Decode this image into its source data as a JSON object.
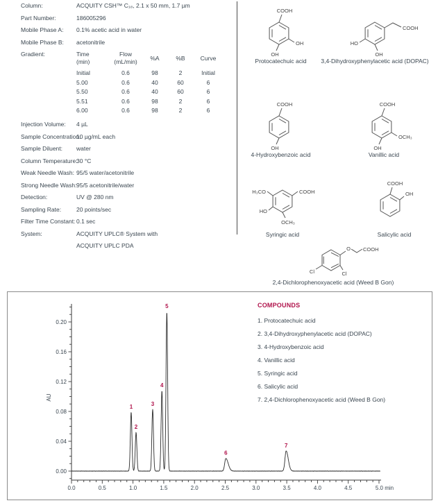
{
  "colors": {
    "accent_crimson": "#b0134b",
    "body_text": "#3a4650",
    "trace": "#2b2b2b",
    "axis": "#3a3a3a",
    "structure_stroke": "#555555"
  },
  "conditions": {
    "rows": [
      {
        "label": "Column:",
        "value": "ACQUITY CSH™ C₁₈, 2.1 x 50 mm, 1.7 µm"
      },
      {
        "label": "Part Number:",
        "value": "186005296"
      },
      {
        "label": "Mobile Phase A:",
        "value": "0.1% acetic acid in water"
      },
      {
        "label": "Mobile Phase B:",
        "value": "acetonitrile"
      }
    ],
    "gradient_label": "Gradient:",
    "gradient": {
      "col_headers": [
        {
          "line1": "Time",
          "line2": "(min)"
        },
        {
          "line1": "Flow",
          "line2": "(mL/min)"
        },
        {
          "line1": "%A",
          "line2": ""
        },
        {
          "line1": "%B",
          "line2": ""
        },
        {
          "line1": "Curve",
          "line2": ""
        }
      ],
      "rows": [
        [
          "Initial",
          "0.6",
          "98",
          "2",
          "Initial"
        ],
        [
          "5.00",
          "0.6",
          "40",
          "60",
          "6"
        ],
        [
          "5.50",
          "0.6",
          "40",
          "60",
          "6"
        ],
        [
          "5.51",
          "0.6",
          "98",
          "2",
          "6"
        ],
        [
          "6.00",
          "0.6",
          "98",
          "2",
          "6"
        ]
      ]
    },
    "rows2": [
      {
        "label": "Injection Volume:",
        "value": "4 µL"
      },
      {
        "label": "Sample Concentration:",
        "value": "10 µg/mL each"
      },
      {
        "label": "Sample Diluent:",
        "value": "water"
      },
      {
        "label": "Column Temperature:",
        "value": "30 °C"
      },
      {
        "label": "Weak Needle Wash:",
        "value": "95/5 water/acetonitrile"
      },
      {
        "label": "Strong Needle Wash:",
        "value": "95/5 acetonitrile/water"
      },
      {
        "label": "Detection:",
        "value": "UV @ 280 nm"
      },
      {
        "label": "Sampling Rate:",
        "value": "20 points/sec"
      },
      {
        "label": "Filter Time Constant:",
        "value": "0.1 sec"
      },
      {
        "label": "System:",
        "value": "ACQUITY UPLC® System with",
        "value2": "ACQUITY UPLC PDA"
      }
    ]
  },
  "structures": {
    "items": [
      {
        "caption": "Protocatechuic acid",
        "sub": {
          "top": "COOH",
          "right": "OH",
          "bottom": "OH"
        }
      },
      {
        "caption": "3,4-Dihydroxyphenylacetic acid (DOPAC)",
        "sub": {
          "chain": "COOH",
          "left": "HO",
          "bottom": "OH"
        }
      },
      {
        "caption": "4-Hydroxybenzoic acid",
        "sub": {
          "top": "COOH",
          "bottom": "OH"
        }
      },
      {
        "caption": "Vanillic acid",
        "sub": {
          "top": "COOH",
          "right": "OCH₃",
          "bottom": "OH"
        }
      },
      {
        "caption": "Syringic acid",
        "sub": {
          "topleft": "H₃CO",
          "topright": "COOH",
          "left": "HO",
          "bottom": "OCH₃"
        }
      },
      {
        "caption": "Salicylic acid",
        "sub": {
          "top": "COOH",
          "right": "OH"
        }
      },
      {
        "caption": "2,4-Dichlorophenoxyacetic acid (Weed B Gon)",
        "sub": {
          "ether": "O",
          "chain": "COOH",
          "cl_left": "Cl",
          "cl_right": "Cl"
        }
      }
    ]
  },
  "chromatogram": {
    "legend": {
      "title": "COMPOUNDS",
      "items": [
        "1. Protocatechuic acid",
        "2. 3,4-Dihydroxyphenylacetic acid (DOPAC)",
        "3. 4-Hydroxybenzoic acid",
        "4. Vanillic acid",
        "5. Syringic acid",
        "6. Salicylic acid",
        "7. 2,4-Dichlorophenoxyacetic acid (Weed B Gon)"
      ]
    }
  },
  "chart_data": {
    "type": "line",
    "title": "",
    "xlabel": "min",
    "ylabel": "AU",
    "xlim": [
      0.0,
      5.0
    ],
    "ylim": [
      -0.012,
      0.224
    ],
    "x_major_tick_step": 0.5,
    "x_minor_tick_step": 0.1,
    "x_tick_labels": [
      "0.0",
      "0.5",
      "1.0",
      "1.5",
      "2.0",
      "2.5",
      "3.0",
      "3.5",
      "4.0",
      "4.5",
      "5.0 min"
    ],
    "y_major_tick_step": 0.04,
    "y_minor_tick_step": 0.01,
    "y_tick_labels": [
      "0.00",
      "0.04",
      "0.08",
      "0.12",
      "0.16",
      "0.20"
    ],
    "grid": false,
    "legend_position": "upper right",
    "peaks": [
      {
        "id": "1",
        "rt": 0.97,
        "height": 0.079,
        "sigma": 0.013,
        "tail": 1.0
      },
      {
        "id": "2",
        "rt": 1.05,
        "height": 0.052,
        "sigma": 0.013,
        "tail": 1.0
      },
      {
        "id": "3",
        "rt": 1.32,
        "height": 0.083,
        "sigma": 0.013,
        "tail": 1.0
      },
      {
        "id": "4",
        "rt": 1.47,
        "height": 0.108,
        "sigma": 0.013,
        "tail": 1.0
      },
      {
        "id": "5",
        "rt": 1.55,
        "height": 0.214,
        "sigma": 0.013,
        "tail": 1.0
      },
      {
        "id": "6",
        "rt": 2.51,
        "height": 0.017,
        "sigma": 0.019,
        "tail": 2.0
      },
      {
        "id": "7",
        "rt": 3.49,
        "height": 0.027,
        "sigma": 0.019,
        "tail": 1.8
      }
    ]
  }
}
